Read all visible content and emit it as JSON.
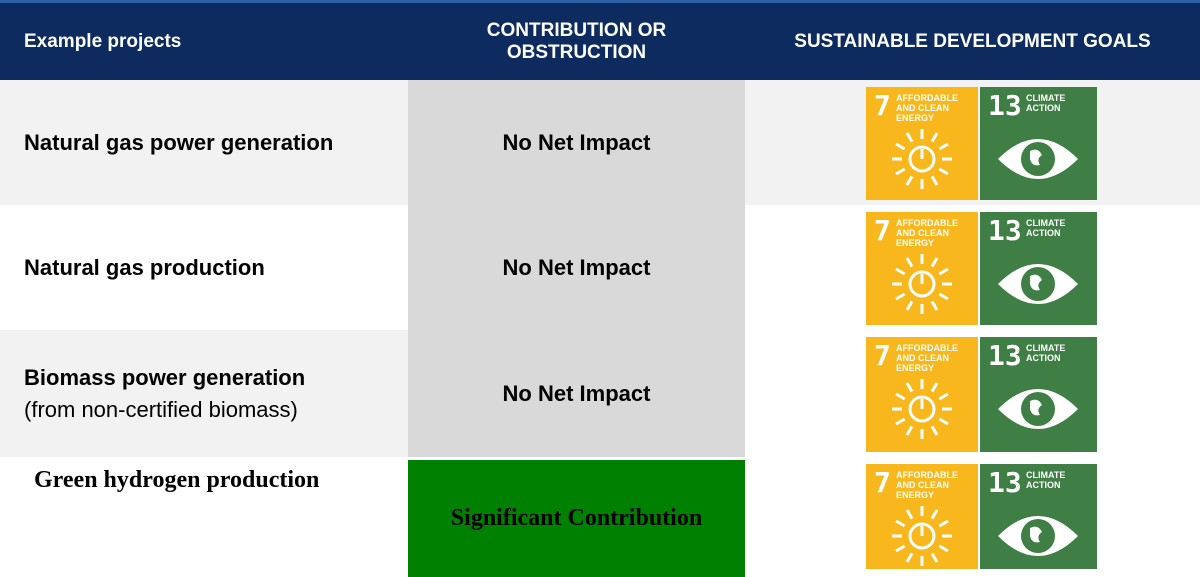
{
  "table": {
    "headers": [
      "Example projects",
      "CONTRIBUTION OR OBSTRUCTION",
      "SUSTAINABLE DEVELOPMENT GOALS"
    ],
    "rows": [
      {
        "project": "Natural gas power generation",
        "impact": "No Net Impact",
        "goals": [
          {
            "number": "7",
            "label": "AFFORDABLE AND CLEAN ENERGY"
          },
          {
            "number": "13",
            "label": "CLIMATE ACTION"
          }
        ]
      },
      {
        "project": "Natural gas production",
        "impact": "No Net Impact",
        "goals": [
          {
            "number": "7",
            "label": "AFFORDABLE AND CLEAN ENERGY"
          },
          {
            "number": "13",
            "label": "CLIMATE ACTION"
          }
        ]
      },
      {
        "project": "Biomass power generation",
        "note": "(from non-certified biomass)",
        "impact": "No Net Impact",
        "goals": [
          {
            "number": "7",
            "label": "AFFORDABLE AND CLEAN ENERGY"
          },
          {
            "number": "13",
            "label": "CLIMATE ACTION"
          }
        ]
      },
      {
        "project": "Green hydrogen production",
        "impact": "Significant Contribution",
        "goals": [
          {
            "number": "7",
            "label": "AFFORDABLE AND CLEAN ENERGY"
          },
          {
            "number": "13",
            "label": "CLIMATE ACTION"
          }
        ]
      }
    ]
  }
}
